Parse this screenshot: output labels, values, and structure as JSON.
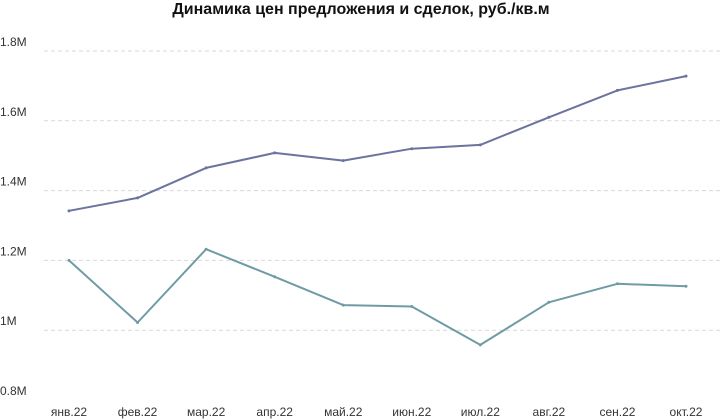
{
  "chart_data": {
    "type": "line",
    "title": "Динамика цен предложения и сделок, руб./кв.м",
    "categories": [
      "янв.22",
      "фев.22",
      "мар.22",
      "апр.22",
      "май.22",
      "июн.22",
      "июл.22",
      "авг.22",
      "сен.22",
      "окт.22"
    ],
    "series": [
      {
        "color": "#6b739e",
        "values": [
          1342000,
          1379000,
          1465000,
          1508000,
          1486000,
          1520000,
          1531000,
          1610000,
          1687000,
          1728000
        ]
      },
      {
        "color": "#6f9ba5",
        "values": [
          1200000,
          1022000,
          1232000,
          1153000,
          1072000,
          1068000,
          958000,
          1080000,
          1133000,
          1126000
        ]
      }
    ],
    "ylim": [
      800000,
      1800000
    ],
    "yticks": [
      800000,
      1000000,
      1200000,
      1400000,
      1600000,
      1800000
    ],
    "ytick_labels": [
      "0.8M",
      "1M",
      "1.2M",
      "1.4M",
      "1.6M",
      "1.8M"
    ],
    "grid": true,
    "xlabel": "",
    "ylabel": ""
  }
}
